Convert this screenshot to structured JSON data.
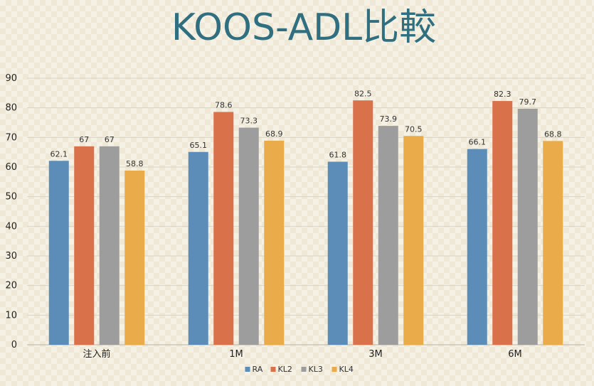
{
  "chart_data": {
    "type": "bar",
    "title": "KOOS-ADL比較",
    "xlabel": "",
    "ylabel": "",
    "categories": [
      "注入前",
      "1M",
      "3M",
      "6M"
    ],
    "ylim": [
      0,
      90
    ],
    "yticks": [
      0,
      10,
      20,
      30,
      40,
      50,
      60,
      70,
      80,
      90
    ],
    "grid": true,
    "legend_position": "bottom",
    "data_labels": true,
    "series": [
      {
        "name": "RA",
        "color": "#5b8db8",
        "values": [
          62.1,
          65.1,
          61.8,
          66.1
        ],
        "labels": [
          "62.1",
          "65.1",
          "61.8",
          "66.1"
        ]
      },
      {
        "name": "KL2",
        "color": "#d9714a",
        "values": [
          67,
          78.6,
          82.5,
          82.3
        ],
        "labels": [
          "67",
          "78.6",
          "82.5",
          "82.3"
        ]
      },
      {
        "name": "KL3",
        "color": "#9d9d9d",
        "values": [
          67,
          73.3,
          73.9,
          79.7
        ],
        "labels": [
          "67",
          "73.3",
          "73.9",
          "79.7"
        ]
      },
      {
        "name": "KL4",
        "color": "#eaab4b",
        "values": [
          58.8,
          68.9,
          70.5,
          68.8
        ],
        "labels": [
          "58.8",
          "68.9",
          "70.5",
          "68.8"
        ]
      }
    ]
  }
}
